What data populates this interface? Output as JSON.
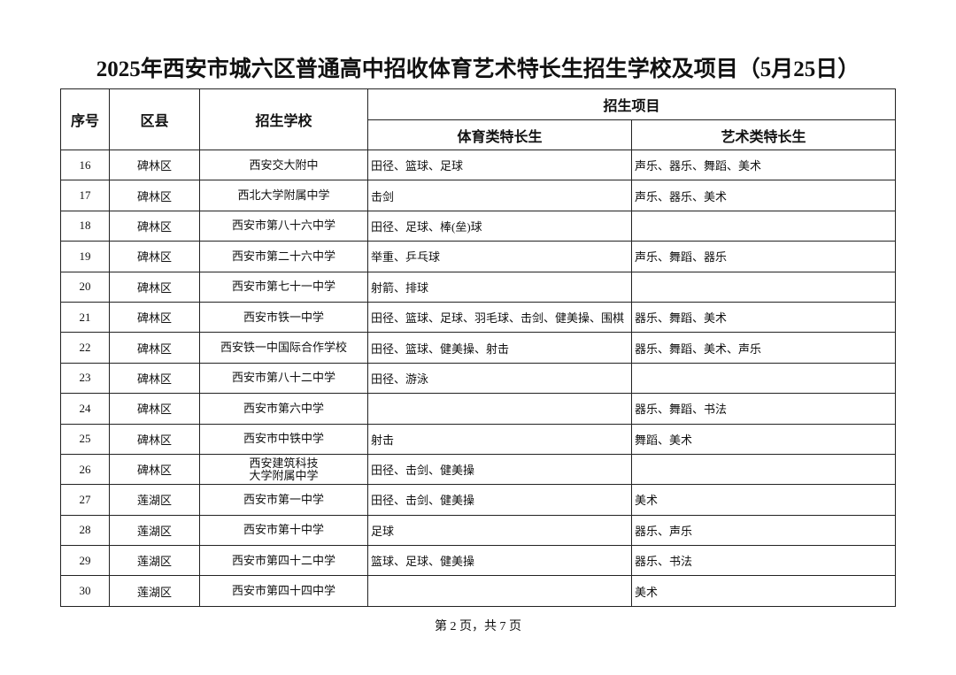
{
  "title": "2025年西安市城六区普通高中招收体育艺术特长生招生学校及项目（5月25日）",
  "table": {
    "headers": {
      "index": "序号",
      "district": "区县",
      "school": "招生学校",
      "projects": "招生项目",
      "sports": "体育类特长生",
      "arts": "艺术类特长生"
    },
    "rows": [
      {
        "no": "16",
        "district": "碑林区",
        "school": "西安交大附中",
        "sports": "田径、篮球、足球",
        "arts": "声乐、器乐、舞蹈、美术"
      },
      {
        "no": "17",
        "district": "碑林区",
        "school": "西北大学附属中学",
        "sports": "击剑",
        "arts": "声乐、器乐、美术"
      },
      {
        "no": "18",
        "district": "碑林区",
        "school": "西安市第八十六中学",
        "sports": "田径、足球、棒(垒)球",
        "arts": ""
      },
      {
        "no": "19",
        "district": "碑林区",
        "school": "西安市第二十六中学",
        "sports": "举重、乒乓球",
        "arts": "声乐、舞蹈、器乐"
      },
      {
        "no": "20",
        "district": "碑林区",
        "school": "西安市第七十一中学",
        "sports": "射箭、排球",
        "arts": ""
      },
      {
        "no": "21",
        "district": "碑林区",
        "school": "西安市铁一中学",
        "sports": "田径、篮球、足球、羽毛球、击剑、健美操、围棋",
        "arts": "器乐、舞蹈、美术"
      },
      {
        "no": "22",
        "district": "碑林区",
        "school": "西安铁一中国际合作学校",
        "sports": "田径、篮球、健美操、射击",
        "arts": "器乐、舞蹈、美术、声乐"
      },
      {
        "no": "23",
        "district": "碑林区",
        "school": "西安市第八十二中学",
        "sports": "田径、游泳",
        "arts": ""
      },
      {
        "no": "24",
        "district": "碑林区",
        "school": "西安市第六中学",
        "sports": "",
        "arts": "器乐、舞蹈、书法"
      },
      {
        "no": "25",
        "district": "碑林区",
        "school": "西安市中铁中学",
        "sports": "射击",
        "arts": "舞蹈、美术"
      },
      {
        "no": "26",
        "district": "碑林区",
        "school": "西安建筑科技大学附属中学",
        "sports": "田径、击剑、健美操",
        "arts": ""
      },
      {
        "no": "27",
        "district": "莲湖区",
        "school": "西安市第一中学",
        "sports": "田径、击剑、健美操",
        "arts": "美术"
      },
      {
        "no": "28",
        "district": "莲湖区",
        "school": "西安市第十中学",
        "sports": "足球",
        "arts": "器乐、声乐"
      },
      {
        "no": "29",
        "district": "莲湖区",
        "school": "西安市第四十二中学",
        "sports": "篮球、足球、健美操",
        "arts": "器乐、书法"
      },
      {
        "no": "30",
        "district": "莲湖区",
        "school": "西安市第四十四中学",
        "sports": "",
        "arts": "美术"
      }
    ]
  },
  "footer": "第 2 页，共 7 页"
}
